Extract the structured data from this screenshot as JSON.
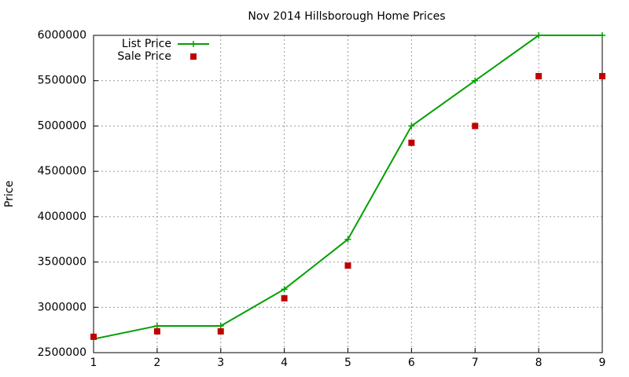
{
  "chart_data": {
    "type": "line",
    "title": "Nov 2014 Hillsborough Home Prices",
    "y_label": "Price",
    "x": [
      1,
      2,
      3,
      4,
      5,
      6,
      7,
      8,
      9
    ],
    "series": [
      {
        "name": "List Price",
        "color": "#00a000",
        "style": "linespoints",
        "values": [
          2650000,
          2795000,
          2795000,
          3200000,
          3750000,
          5000000,
          5500000,
          6000000,
          6000000
        ]
      },
      {
        "name": "Sale Price",
        "color": "#c00000",
        "style": "points",
        "values": [
          2675000,
          2735000,
          2735000,
          3100000,
          3460000,
          4815000,
          5000000,
          5550000,
          5550000
        ]
      }
    ],
    "xlim": [
      1,
      9
    ],
    "xticks": [
      1,
      2,
      3,
      4,
      5,
      6,
      7,
      8,
      9
    ],
    "ylim": [
      2500000,
      6000000
    ],
    "yticks": [
      2500000,
      3000000,
      3500000,
      4000000,
      4500000,
      5000000,
      5500000,
      6000000
    ],
    "grid": true,
    "legend": "top-left"
  }
}
